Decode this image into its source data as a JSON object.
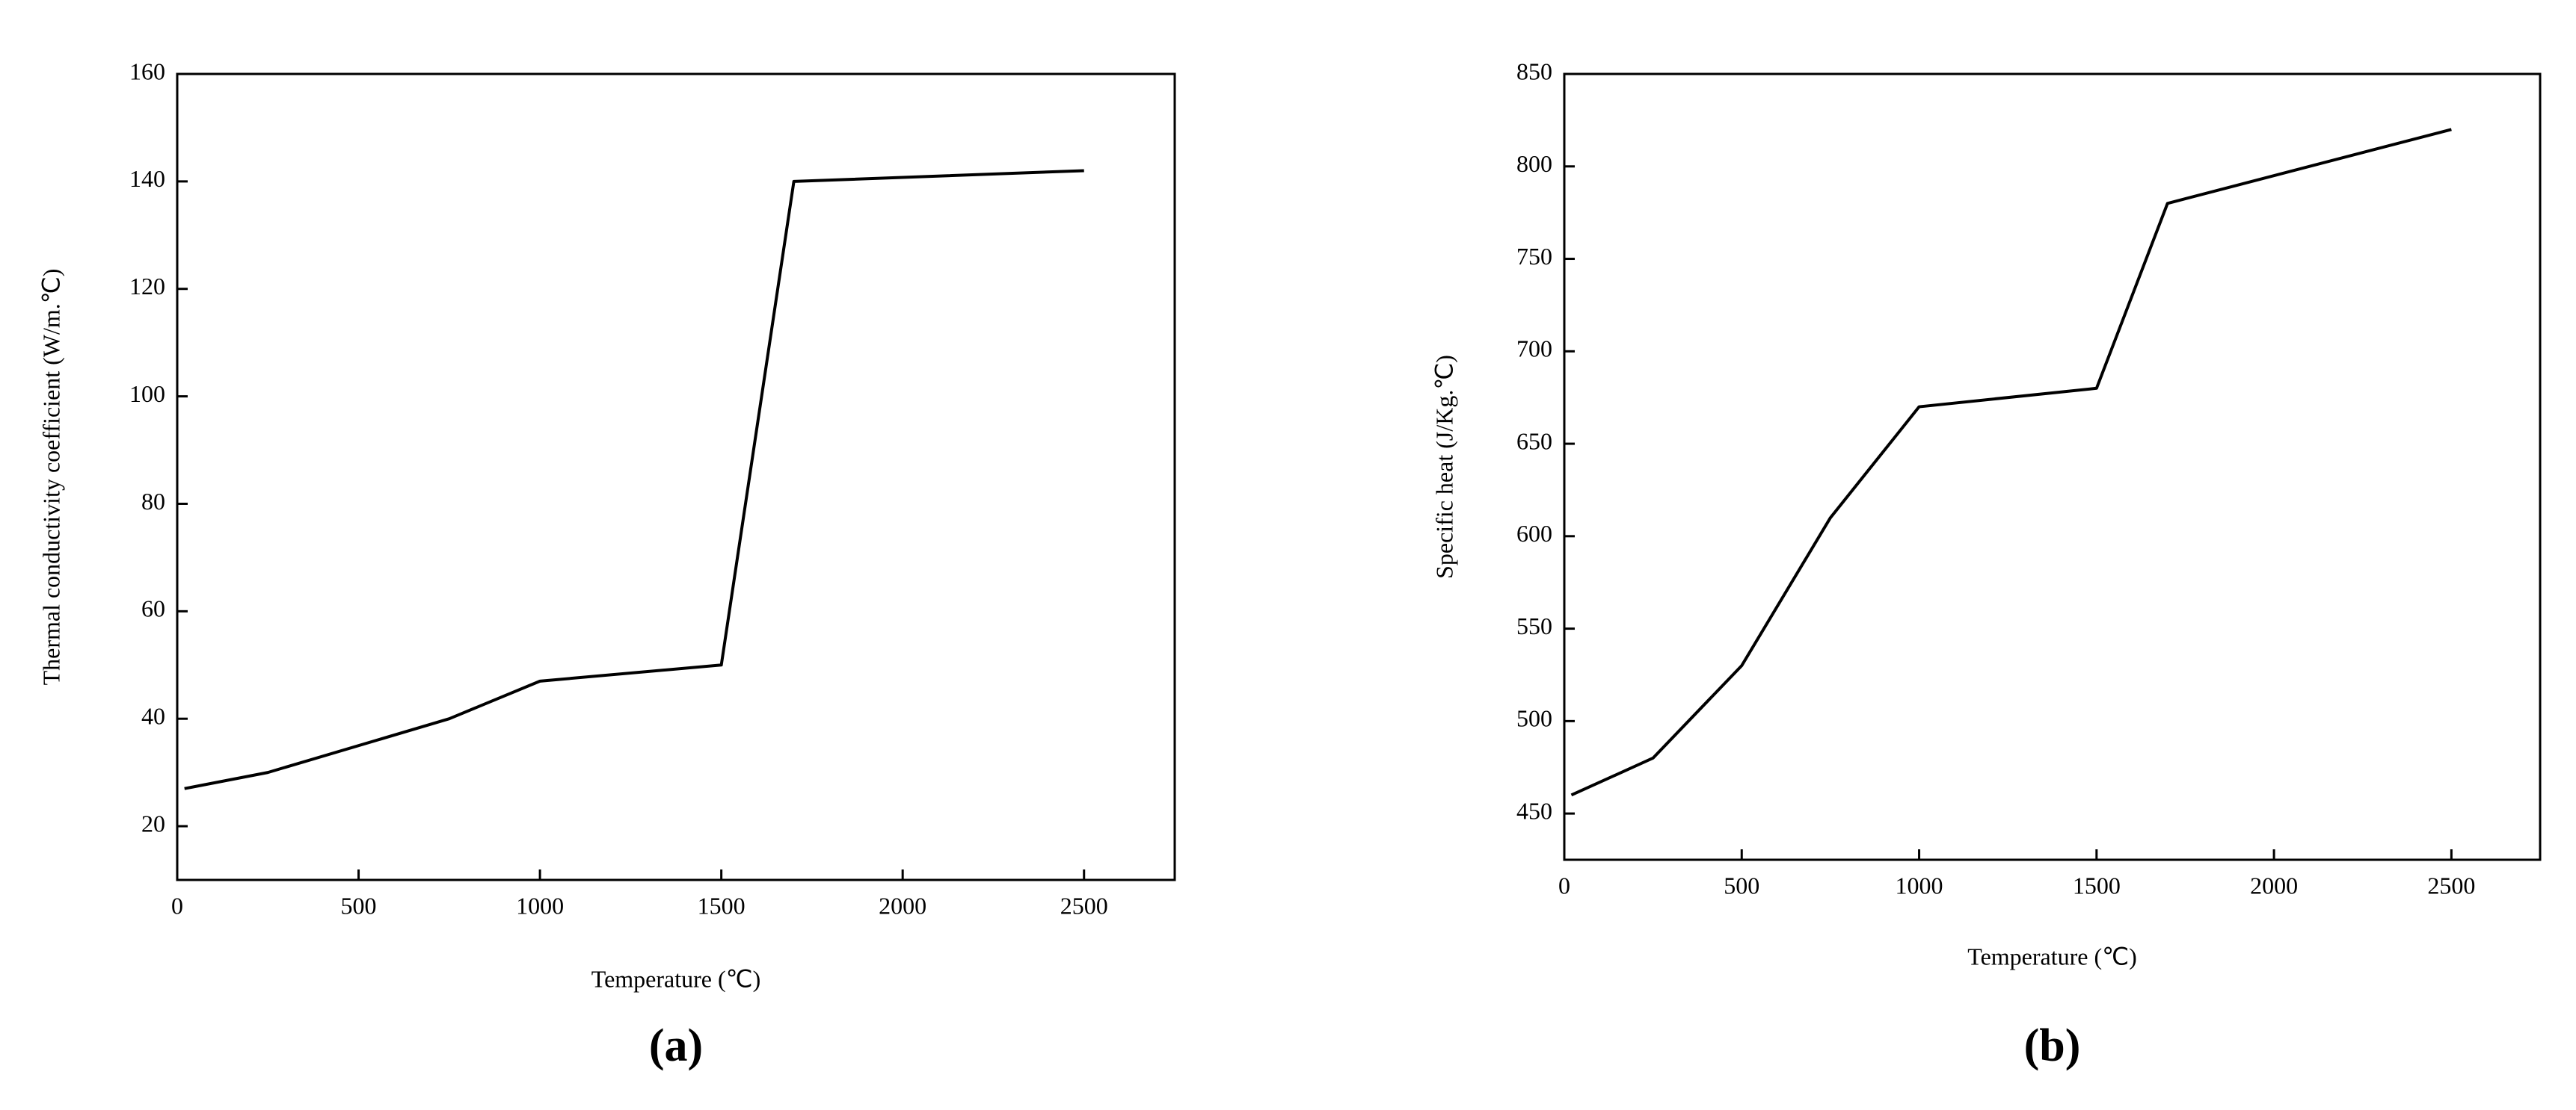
{
  "chart_data": [
    {
      "type": "line",
      "panel_label": "(a)",
      "xlabel": "Temperature (℃)",
      "ylabel": "Thermal conductivity coefficient (W/m.℃)",
      "x": [
        20,
        250,
        750,
        1000,
        1500,
        1700,
        2500
      ],
      "values": [
        27,
        30,
        40,
        47,
        50,
        140,
        142
      ],
      "color": "#000000",
      "xlim": [
        0,
        2750
      ],
      "ylim": [
        10,
        160
      ],
      "xticks": [
        0,
        500,
        1000,
        1500,
        2000,
        2500
      ],
      "yticks": [
        20,
        40,
        60,
        80,
        100,
        120,
        140,
        160
      ]
    },
    {
      "type": "line",
      "panel_label": "(b)",
      "xlabel": "Temperature (℃)",
      "ylabel": "Specific heat (J/Kg.℃)",
      "x": [
        20,
        250,
        500,
        750,
        1000,
        1500,
        1700,
        2500
      ],
      "values": [
        460,
        480,
        530,
        610,
        670,
        680,
        780,
        820
      ],
      "color": "#000000",
      "xlim": [
        0,
        2750
      ],
      "ylim": [
        425,
        850
      ],
      "xticks": [
        0,
        500,
        1000,
        1500,
        2000,
        2500
      ],
      "yticks": [
        450,
        500,
        550,
        600,
        650,
        700,
        750,
        800,
        850
      ]
    }
  ]
}
